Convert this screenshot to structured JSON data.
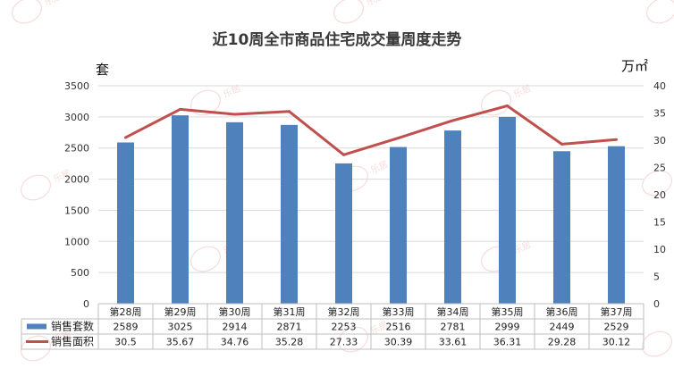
{
  "chart_data": {
    "type": "bar",
    "title": "近10周全市商品住宅成交量周度走势",
    "left_unit": "套",
    "right_unit": "万㎡",
    "categories": [
      "第28周",
      "第29周",
      "第30周",
      "第31周",
      "第32周",
      "第33周",
      "第34周",
      "第35周",
      "第36周",
      "第37周"
    ],
    "series": [
      {
        "name": "销售套数",
        "type": "bar",
        "axis": "left",
        "color": "#4f81bd",
        "values": [
          2589,
          3025,
          2914,
          2871,
          2253,
          2516,
          2781,
          2999,
          2449,
          2529
        ]
      },
      {
        "name": "销售面积",
        "type": "line",
        "axis": "right",
        "color": "#c0504d",
        "values": [
          30.5,
          35.67,
          34.76,
          35.28,
          27.33,
          30.39,
          33.61,
          36.31,
          29.28,
          30.12
        ]
      }
    ],
    "left_axis": {
      "min": 0,
      "max": 3500,
      "step": 500,
      "ticks": [
        "0",
        "500",
        "1000",
        "1500",
        "2000",
        "2500",
        "3000",
        "3500"
      ]
    },
    "right_axis": {
      "min": 0,
      "max": 40,
      "step": 5,
      "ticks": [
        "0",
        "5",
        "10",
        "15",
        "20",
        "25",
        "30",
        "35",
        "40"
      ]
    },
    "table": {
      "rows": [
        {
          "label": "销售套数",
          "cells": [
            "2589",
            "3025",
            "2914",
            "2871",
            "2253",
            "2516",
            "2781",
            "2999",
            "2449",
            "2529"
          ]
        },
        {
          "label": "销售面积",
          "cells": [
            "30.5",
            "35.67",
            "34.76",
            "35.28",
            "27.33",
            "30.39",
            "33.61",
            "36.31",
            "29.28",
            "30.12"
          ]
        }
      ]
    },
    "gridlines": true,
    "watermark": "乐居"
  }
}
